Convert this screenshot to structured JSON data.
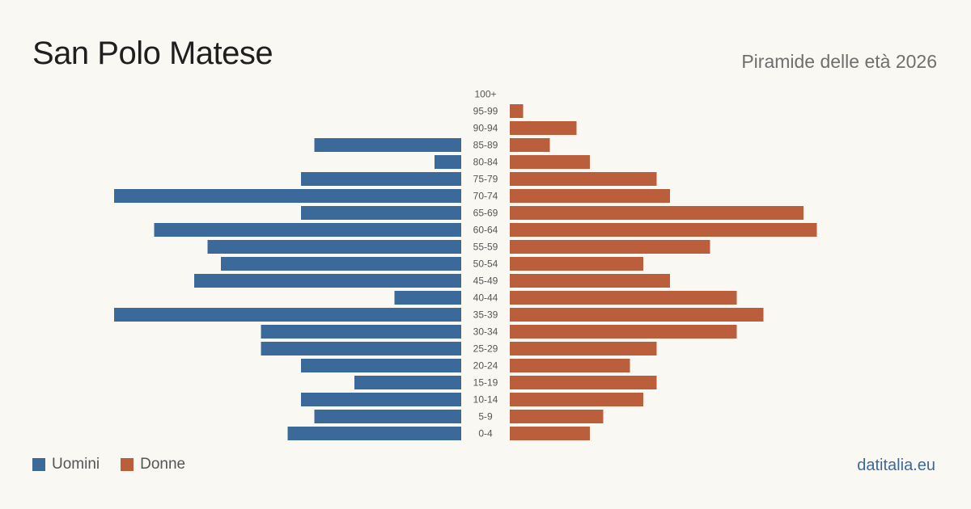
{
  "header": {
    "title": "San Polo Matese",
    "subtitle": "Piramide delle età 2026"
  },
  "footer": {
    "brand": "datitalia.eu"
  },
  "colors": {
    "male": "#3b6a9a",
    "female": "#bb5e3c",
    "label": "#555555"
  },
  "chart_data": {
    "type": "bar",
    "orientation": "horizontal",
    "categories": [
      "100+",
      "95-99",
      "90-94",
      "85-89",
      "80-84",
      "75-79",
      "70-74",
      "65-69",
      "60-64",
      "55-59",
      "50-54",
      "45-49",
      "40-44",
      "35-39",
      "30-34",
      "25-29",
      "20-24",
      "15-19",
      "10-14",
      "5-9",
      "0-4"
    ],
    "series": [
      {
        "name": "Uomini",
        "values": [
          0,
          0,
          0,
          11,
          2,
          12,
          26,
          12,
          23,
          19,
          18,
          20,
          5,
          26,
          15,
          15,
          12,
          8,
          12,
          11,
          13
        ]
      },
      {
        "name": "Donne",
        "values": [
          0,
          1,
          5,
          3,
          6,
          11,
          12,
          22,
          23,
          15,
          10,
          12,
          17,
          19,
          17,
          11,
          9,
          11,
          10,
          7,
          6
        ]
      }
    ],
    "legend": [
      "Uomini",
      "Donne"
    ],
    "legend_position": "bottom-left",
    "grid": false
  }
}
